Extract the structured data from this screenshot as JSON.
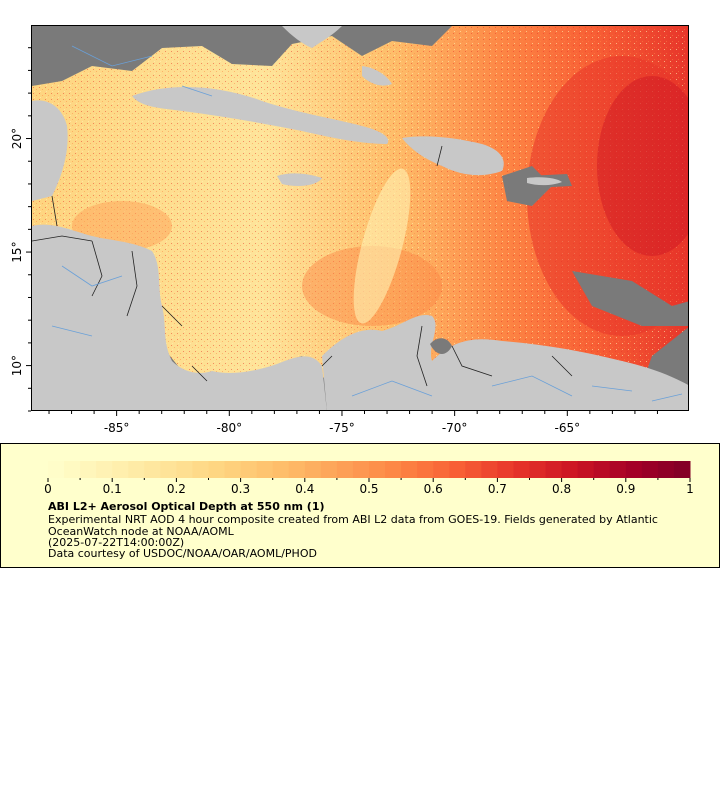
{
  "map": {
    "lon_range": [
      -88.8,
      -59.6
    ],
    "lat_range": [
      8.0,
      25.0
    ],
    "lon_ticks": [
      {
        "value": -85,
        "label": "-85°"
      },
      {
        "value": -80,
        "label": "-80°"
      },
      {
        "value": -75,
        "label": "-75°"
      },
      {
        "value": -70,
        "label": "-70°"
      },
      {
        "value": -65,
        "label": "-65°"
      }
    ],
    "lat_ticks": [
      {
        "value": 20,
        "label": "20°"
      },
      {
        "value": 15,
        "label": "15°"
      },
      {
        "value": 10,
        "label": "10°"
      }
    ],
    "colors": {
      "land": "#c8c8c8",
      "nodata": "#7a7a7a",
      "border": "#222222",
      "river": "#6aa0d8",
      "frame": "#000000"
    }
  },
  "legend": {
    "title": "ABI L2+ Aerosol Optical Depth at 550 nm (1)",
    "description": "Experimental NRT AOD 4 hour composite created from ABI L2 data from GOES-19. Fields generated by Atlantic OceanWatch node at NOAA/AOML",
    "timestamp": "(2025-07-22T14:00:00Z)",
    "credit": "Data courtesy of USDOC/NOAA/OAR/AOML/PHOD",
    "background": "#ffffcc",
    "colorbar": {
      "min": 0,
      "max": 1,
      "ticks": [
        "0",
        "0.1",
        "0.2",
        "0.3",
        "0.4",
        "0.5",
        "0.6",
        "0.7",
        "0.8",
        "0.9",
        "1"
      ],
      "colors": [
        "#ffffcc",
        "#fff2b3",
        "#fee49a",
        "#fed47f",
        "#febe6a",
        "#fda258",
        "#fd8544",
        "#f86035",
        "#e7352a",
        "#cc1524",
        "#a50026",
        "#800026"
      ]
    }
  }
}
